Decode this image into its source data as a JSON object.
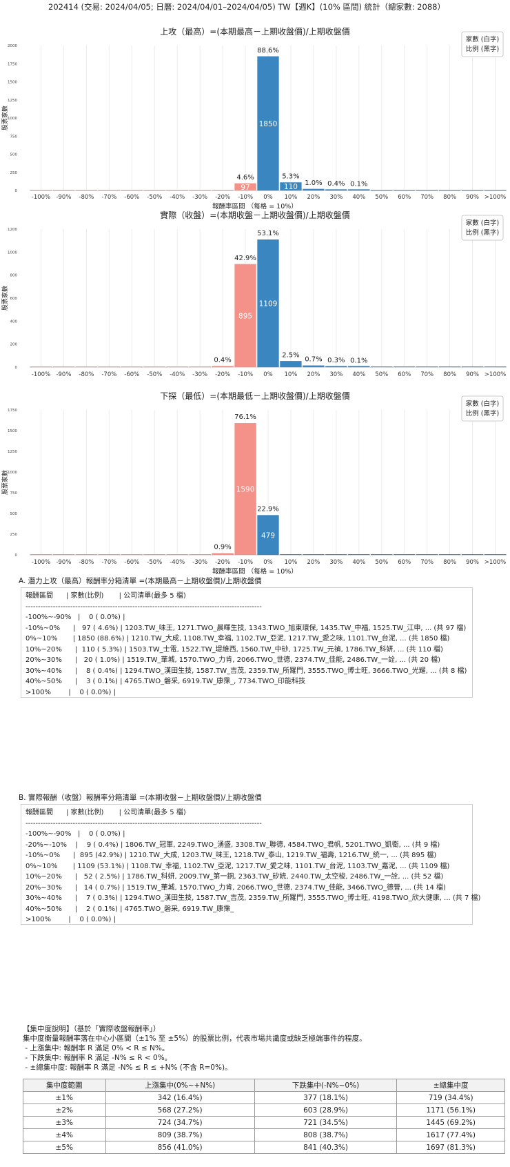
{
  "page_title": "202414 (交易: 2024/04/05; 日曆: 2024/04/01–2024/04/05) TW【週K】(10% 區間) 統計（總家數: 2088）",
  "legend_lines": [
    "家數 (白字)",
    "比例 (黑字)"
  ],
  "colors": {
    "negative": "#f4928a",
    "positive": "#3a86c0",
    "grid": "#ececec"
  },
  "chart_data": [
    {
      "type": "bar",
      "title": "上攻（最高）=(本期最高－上期收盤價)/上期收盤價",
      "xlabel": "報酬率區間 （每格 = 10%）",
      "ylabel": "股票家數",
      "categories": [
        "-100%",
        "-90%",
        "-80%",
        "-70%",
        "-60%",
        "-50%",
        "-40%",
        "-30%",
        "-20%",
        "-10%",
        "0%",
        "10%",
        "20%",
        "30%",
        "40%",
        "50%",
        "60%",
        "70%",
        "80%",
        "90%",
        ">100%"
      ],
      "values": [
        0,
        0,
        0,
        0,
        0,
        0,
        0,
        0,
        0,
        97,
        1850,
        110,
        20,
        8,
        3,
        0,
        0,
        0,
        0,
        0,
        0
      ],
      "percent_labels": [
        "",
        "",
        "",
        "",
        "",
        "",
        "",
        "",
        "",
        "4.6%",
        "88.6%",
        "5.3%",
        "1.0%",
        "0.4%",
        "0.1%",
        "",
        "",
        "",
        "",
        "",
        ""
      ],
      "yticks": [
        0,
        250,
        500,
        750,
        1000,
        1250,
        1500,
        1750,
        2000
      ],
      "ylim": [
        0,
        2000
      ]
    },
    {
      "type": "bar",
      "title": "實際（收盤）=(本期收盤－上期收盤價)/上期收盤價",
      "xlabel": "",
      "ylabel": "股票家數",
      "categories": [
        "-100%",
        "-90%",
        "-80%",
        "-70%",
        "-60%",
        "-50%",
        "-40%",
        "-30%",
        "-20%",
        "-10%",
        "0%",
        "10%",
        "20%",
        "30%",
        "40%",
        "50%",
        "60%",
        "70%",
        "80%",
        "90%",
        ">100%"
      ],
      "values": [
        0,
        0,
        0,
        0,
        0,
        0,
        0,
        0,
        9,
        895,
        1109,
        52,
        14,
        7,
        2,
        0,
        0,
        0,
        0,
        0,
        0
      ],
      "percent_labels": [
        "",
        "",
        "",
        "",
        "",
        "",
        "",
        "",
        "0.4%",
        "42.9%",
        "53.1%",
        "2.5%",
        "0.7%",
        "0.3%",
        "0.1%",
        "",
        "",
        "",
        "",
        "",
        ""
      ],
      "yticks": [
        0,
        200,
        400,
        600,
        800,
        1000,
        1200
      ],
      "ylim": [
        0,
        1200
      ]
    },
    {
      "type": "bar",
      "title": "下探（最低）=(本期最低－上期收盤價)/上期收盤價",
      "xlabel": "報酬率區間 （每格 = 10%）",
      "ylabel": "股票家數",
      "categories": [
        "-100%",
        "-90%",
        "-80%",
        "-70%",
        "-60%",
        "-50%",
        "-40%",
        "-30%",
        "-20%",
        "-10%",
        "0%",
        "10%",
        "20%",
        "30%",
        "40%",
        "50%",
        "60%",
        "70%",
        "80%",
        "90%",
        ">100%"
      ],
      "values": [
        0,
        0,
        0,
        0,
        0,
        0,
        0,
        0,
        19,
        1590,
        479,
        0,
        0,
        0,
        0,
        0,
        0,
        0,
        0,
        0,
        0
      ],
      "percent_labels": [
        "",
        "",
        "",
        "",
        "",
        "",
        "",
        "",
        "0.9%",
        "76.1%",
        "22.9%",
        "",
        "",
        "",
        "",
        "",
        "",
        "",
        "",
        "",
        ""
      ],
      "yticks": [
        0,
        250,
        500,
        750,
        1000,
        1250,
        1500,
        1750
      ],
      "ylim": [
        0,
        1750
      ]
    }
  ],
  "section_a": {
    "title": "A. 潛力上攻（最高）報酬率分箱清單 =(本期最高－上期收盤價)/上期收盤價",
    "lines": [
      "報酬區間      | 家數(比例)       | 公司清單(最多 5 檔)",
      "-----------------------------------------------------------------------------------------------",
      "-100%~-90%   |    0 ( 0.0%) |",
      "-10%~0%      |   97 ( 4.6%) | 1203.TW_味王, 1271.TWO_晨暉生技, 1343.TWO_旭東環保, 1435.TW_中福, 1525.TW_江申, ... (共 97 檔)",
      "0%~10%       | 1850 (88.6%) | 1210.TW_大成, 1108.TW_幸福, 1102.TW_亞泥, 1217.TW_愛之味, 1101.TW_台泥, ... (共 1850 檔)",
      "10%~20%      |  110 ( 5.3%) | 1503.TW_士電, 1522.TW_堤維西, 1560.TW_中砂, 1725.TW_元禎, 1786.TW_科妍, ... (共 110 檔)",
      "20%~30%      |   20 ( 1.0%) | 1519.TW_華城, 1570.TWO_力肯, 2066.TWO_世德, 2374.TW_佳能, 2486.TW_一詮, ... (共 20 檔)",
      "30%~40%      |    8 ( 0.4%) | 1294.TWO_漢田生技, 1587.TW_吉茂, 2359.TW_所羅門, 3555.TWO_博士旺, 3666.TWO_光耀, ... (共 8 檔)",
      "40%~50%      |    3 ( 0.1%) | 4765.TWO_磐采, 6919.TW_康霈_, 7734.TWO_印能科技",
      ">100%        |    0 ( 0.0%) |"
    ]
  },
  "section_b": {
    "title": "B. 實際報酬（收盤）報酬率分箱清單 =(本期收盤－上期收盤價)/上期收盤價",
    "lines": [
      "報酬區間      | 家數(比例)       | 公司清單(最多 5 檔)",
      "-----------------------------------------------------------------------------------------------",
      "-100%~-90%   |    0 ( 0.0%) |",
      "-20%~-10%    |    9 ( 0.4%) | 1806.TW_冠軍, 2249.TWO_湧盛, 3308.TW_聯德, 4584.TWO_君帆, 5201.TWO_凱衛, ... (共 9 檔)",
      "-10%~0%      |  895 (42.9%) | 1210.TW_大成, 1203.TW_味王, 1218.TW_泰山, 1219.TW_福壽, 1216.TW_統一, ... (共 895 檔)",
      "0%~10%       | 1109 (53.1%) | 1108.TW_幸福, 1102.TW_亞泥, 1217.TW_愛之味, 1101.TW_台泥, 1103.TW_嘉泥, ... (共 1109 檔)",
      "10%~20%      |   52 ( 2.5%) | 1786.TW_科妍, 2009.TW_第一銅, 2363.TW_矽統, 2440.TW_太空梭, 2486.TW_一詮, ... (共 52 檔)",
      "20%~30%      |   14 ( 0.7%) | 1519.TW_華城, 1570.TWO_力肯, 2066.TWO_世德, 2374.TW_佳能, 3466.TWO_德晉, ... (共 14 檔)",
      "30%~40%      |    7 ( 0.3%) | 1294.TWO_漢田生技, 1587.TW_吉茂, 2359.TW_所羅門, 3555.TWO_博士旺, 4198.TWO_欣大健康, ... (共 7 檔)",
      "40%~50%      |    2 ( 0.1%) | 4765.TWO_磐采, 6919.TW_康霈_",
      ">100%        |    0 ( 0.0%) |"
    ]
  },
  "concentration": {
    "lines": [
      "【集中度說明】（基於「實際收盤報酬率」）",
      "集中度衡量報酬率落在中心小區間（±1% 至 ±5%）的股票比例，代表市場共識度或缺乏極端事件的程度。",
      " - 上漲集中: 報酬率 R 滿足 0% < R ≤ N%。",
      " - 下跌集中: 報酬率 R 滿足 -N% ≤ R < 0%。",
      " - ±總集中度: 報酬率 R 滿足 -N% ≤ R ≤ +N% (不含 R=0%)。"
    ],
    "headers": [
      "集中度範圍",
      "上漲集中(0%~+N%)",
      "下跌集中(-N%~0%)",
      "±總集中度"
    ],
    "rows": [
      [
        "±1%",
        "342 (16.4%)",
        "377 (18.1%)",
        "719 (34.4%)"
      ],
      [
        "±2%",
        "568 (27.2%)",
        "603 (28.9%)",
        "1171 (56.1%)"
      ],
      [
        "±3%",
        "724 (34.7%)",
        "721 (34.5%)",
        "1445 (69.2%)"
      ],
      [
        "±4%",
        "809 (38.7%)",
        "808 (38.7%)",
        "1617 (77.4%)"
      ],
      [
        "±5%",
        "856 (41.0%)",
        "841 (40.3%)",
        "1697 (81.3%)"
      ]
    ]
  }
}
